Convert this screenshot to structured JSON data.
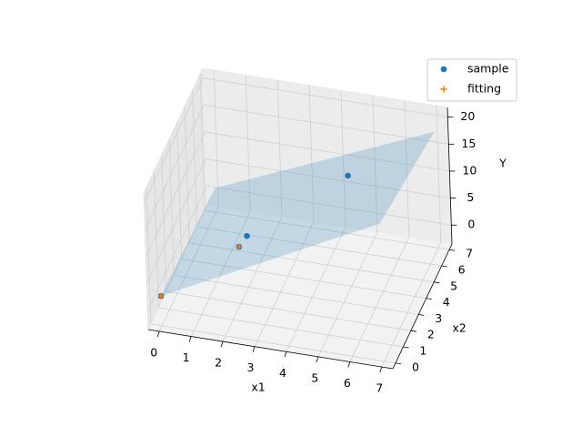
{
  "chart_data": {
    "type": "scatter3d",
    "xlabel": "x1",
    "ylabel": "x2",
    "zlabel": "Y",
    "xlim": [
      -0.35,
      7.35
    ],
    "ylim": [
      -0.35,
      7.35
    ],
    "zlim": [
      -3.5,
      21.8
    ],
    "xticks": [
      0,
      1,
      2,
      3,
      4,
      5,
      6,
      7
    ],
    "yticks": [
      0,
      1,
      2,
      3,
      4,
      5,
      6,
      7
    ],
    "zticks": [
      0,
      5,
      10,
      15,
      20
    ],
    "grid": true,
    "legend": "upper right",
    "series": [
      {
        "name": "sample",
        "color": "#1f77b4",
        "marker": "o",
        "x": [
          0,
          2,
          2,
          5
        ],
        "y": [
          0,
          3,
          2,
          4
        ],
        "z": [
          2,
          6,
          7,
          17
        ]
      },
      {
        "name": "fitting",
        "color": "#ff7f0e",
        "marker": "+",
        "x": [
          0,
          2
        ],
        "y": [
          0,
          2
        ],
        "z": [
          2,
          7
        ]
      }
    ],
    "surface": {
      "color": "#1f77b4",
      "x": [
        0,
        7
      ],
      "y": [
        0,
        7
      ],
      "z": [
        [
          2,
          1
        ],
        [
          22,
          18
        ]
      ]
    }
  }
}
